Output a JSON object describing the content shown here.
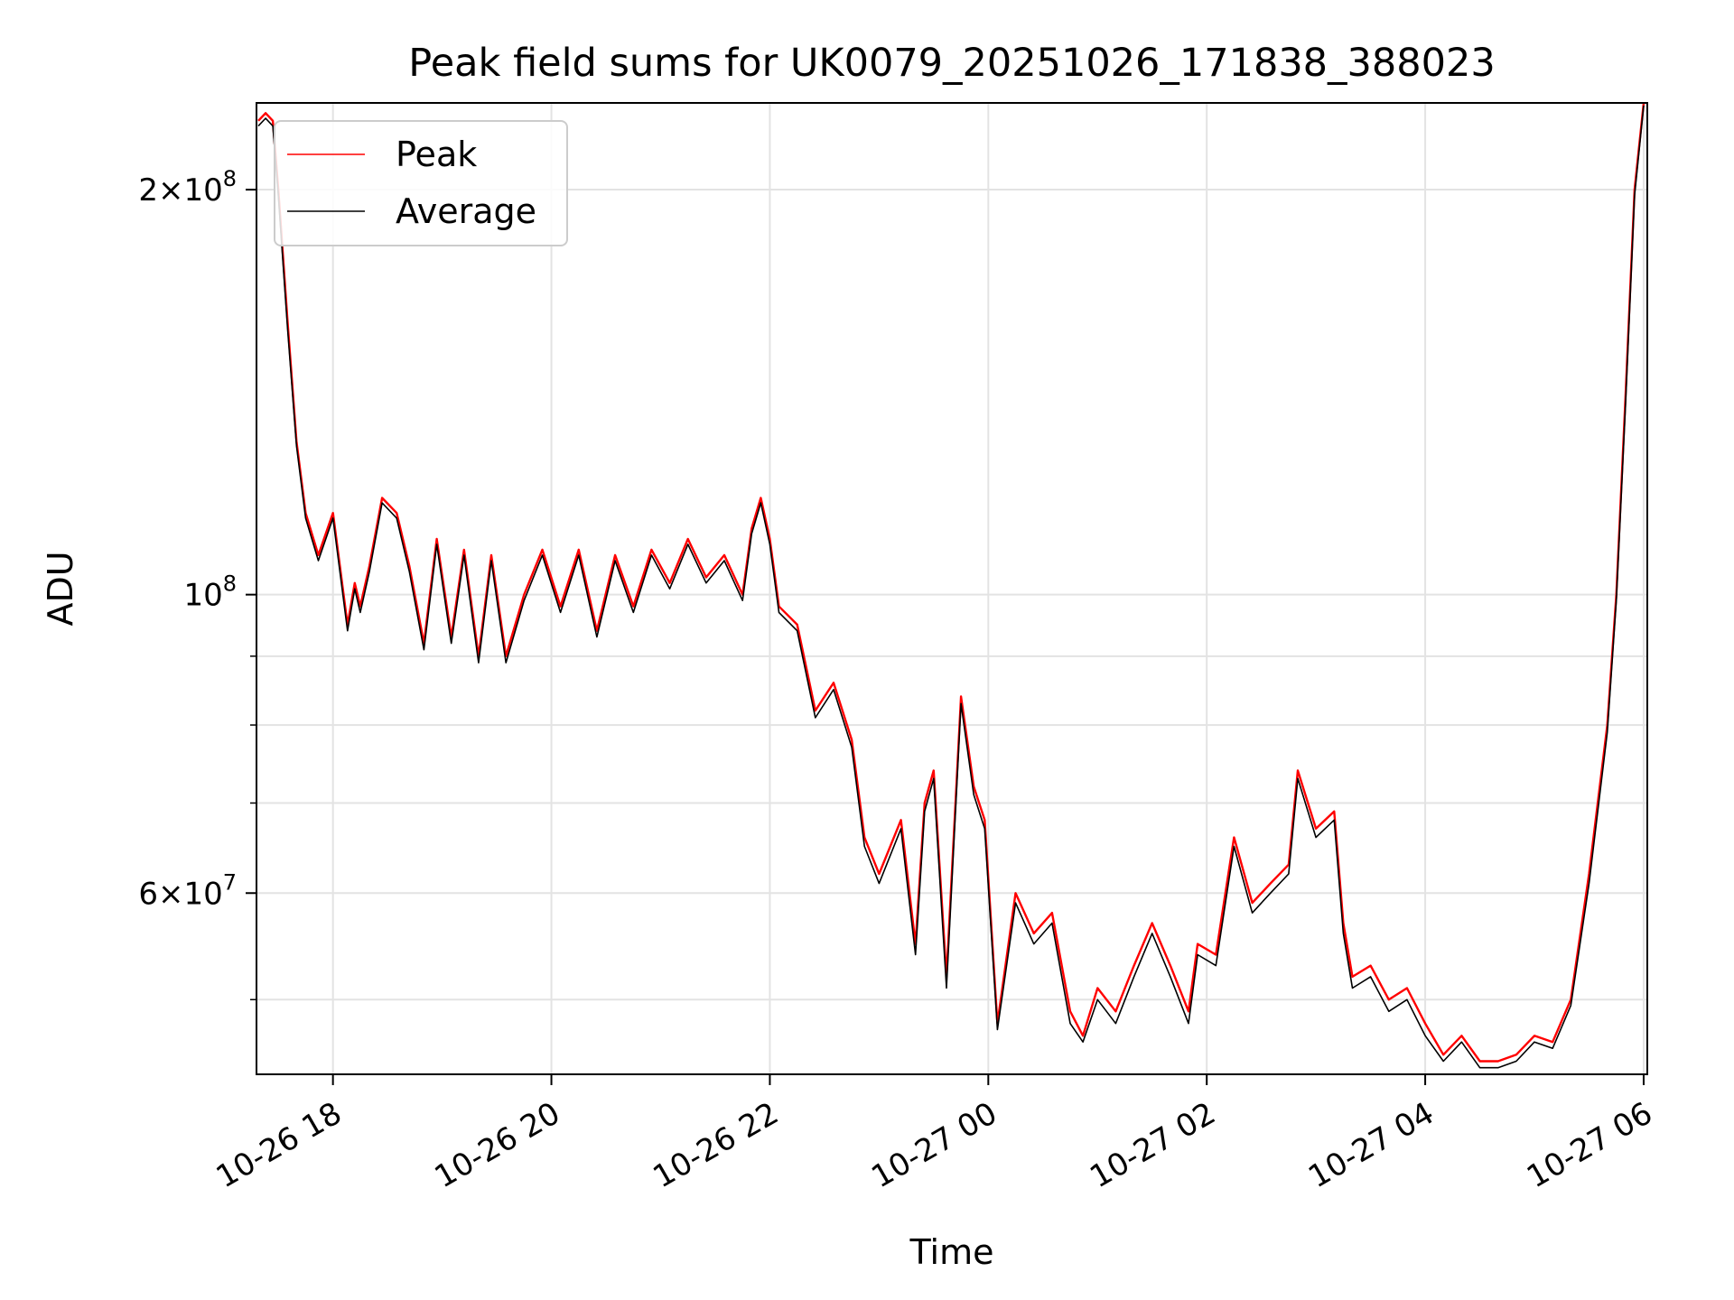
{
  "chart_data": {
    "type": "line",
    "title": "Peak field sums for UK0079_20251026_171838_388023",
    "xlabel": "Time",
    "ylabel": "ADU",
    "y_scale": "log",
    "grid": true,
    "legend_position": "top-left",
    "xlim": [
      "2025-10-26 17:18",
      "2025-10-27 06:02"
    ],
    "ylim": [
      44000000,
      232000000
    ],
    "x_ticks": [
      {
        "t": "2025-10-26 18:00",
        "label": "10-26 18"
      },
      {
        "t": "2025-10-26 20:00",
        "label": "10-26 20"
      },
      {
        "t": "2025-10-26 22:00",
        "label": "10-26 22"
      },
      {
        "t": "2025-10-27 00:00",
        "label": "10-27 00"
      },
      {
        "t": "2025-10-27 02:00",
        "label": "10-27 02"
      },
      {
        "t": "2025-10-27 04:00",
        "label": "10-27 04"
      },
      {
        "t": "2025-10-27 06:00",
        "label": "10-27 06"
      }
    ],
    "y_major_ticks": [
      {
        "value": 60000000,
        "base": "6",
        "exp": "7"
      },
      {
        "value": 100000000,
        "base": "",
        "exp": "8"
      },
      {
        "value": 200000000,
        "base": "2",
        "exp": "8"
      }
    ],
    "y_minor_ticks": [
      50000000,
      70000000,
      80000000,
      90000000
    ],
    "series": [
      {
        "name": "Peak",
        "color": "#ff0000",
        "x": [
          "2025-10-26 17:19",
          "2025-10-26 17:23",
          "2025-10-26 17:27",
          "2025-10-26 17:30",
          "2025-10-26 17:35",
          "2025-10-26 17:40",
          "2025-10-26 17:45",
          "2025-10-26 17:52",
          "2025-10-26 18:00",
          "2025-10-26 18:08",
          "2025-10-26 18:12",
          "2025-10-26 18:15",
          "2025-10-26 18:20",
          "2025-10-26 18:27",
          "2025-10-26 18:35",
          "2025-10-26 18:42",
          "2025-10-26 18:50",
          "2025-10-26 18:57",
          "2025-10-26 19:05",
          "2025-10-26 19:12",
          "2025-10-26 19:20",
          "2025-10-26 19:27",
          "2025-10-26 19:35",
          "2025-10-26 19:45",
          "2025-10-26 19:55",
          "2025-10-26 20:05",
          "2025-10-26 20:15",
          "2025-10-26 20:25",
          "2025-10-26 20:35",
          "2025-10-26 20:45",
          "2025-10-26 20:55",
          "2025-10-26 21:05",
          "2025-10-26 21:15",
          "2025-10-26 21:25",
          "2025-10-26 21:35",
          "2025-10-26 21:45",
          "2025-10-26 21:50",
          "2025-10-26 21:55",
          "2025-10-26 22:00",
          "2025-10-26 22:05",
          "2025-10-26 22:15",
          "2025-10-26 22:25",
          "2025-10-26 22:35",
          "2025-10-26 22:45",
          "2025-10-26 22:52",
          "2025-10-26 23:00",
          "2025-10-26 23:12",
          "2025-10-26 23:20",
          "2025-10-26 23:25",
          "2025-10-26 23:30",
          "2025-10-26 23:37",
          "2025-10-26 23:45",
          "2025-10-26 23:52",
          "2025-10-26 23:58",
          "2025-10-27 00:05",
          "2025-10-27 00:15",
          "2025-10-27 00:25",
          "2025-10-27 00:35",
          "2025-10-27 00:45",
          "2025-10-27 00:52",
          "2025-10-27 01:00",
          "2025-10-27 01:10",
          "2025-10-27 01:20",
          "2025-10-27 01:30",
          "2025-10-27 01:40",
          "2025-10-27 01:50",
          "2025-10-27 01:55",
          "2025-10-27 02:05",
          "2025-10-27 02:15",
          "2025-10-27 02:25",
          "2025-10-27 02:35",
          "2025-10-27 02:45",
          "2025-10-27 02:50",
          "2025-10-27 03:00",
          "2025-10-27 03:10",
          "2025-10-27 03:15",
          "2025-10-27 03:20",
          "2025-10-27 03:30",
          "2025-10-27 03:40",
          "2025-10-27 03:50",
          "2025-10-27 04:00",
          "2025-10-27 04:10",
          "2025-10-27 04:20",
          "2025-10-27 04:30",
          "2025-10-27 04:40",
          "2025-10-27 04:50",
          "2025-10-27 05:00",
          "2025-10-27 05:10",
          "2025-10-27 05:20",
          "2025-10-27 05:30",
          "2025-10-27 05:40",
          "2025-10-27 05:45",
          "2025-10-27 05:50",
          "2025-10-27 05:55",
          "2025-10-27 06:00"
        ],
        "values": [
          225000000,
          228000000,
          225000000,
          200000000,
          160000000,
          130000000,
          115000000,
          107000000,
          115000000,
          95000000,
          102000000,
          98000000,
          105000000,
          118000000,
          115000000,
          105000000,
          92000000,
          110000000,
          93000000,
          108000000,
          90000000,
          107000000,
          90000000,
          100000000,
          108000000,
          98000000,
          108000000,
          94000000,
          107000000,
          98000000,
          108000000,
          102000000,
          110000000,
          103000000,
          107000000,
          100000000,
          112000000,
          118000000,
          110000000,
          98000000,
          95000000,
          82000000,
          86000000,
          78000000,
          66000000,
          62000000,
          68000000,
          55000000,
          70000000,
          74000000,
          52000000,
          84000000,
          72000000,
          68000000,
          48000000,
          60000000,
          56000000,
          58000000,
          49000000,
          47000000,
          51000000,
          49000000,
          53000000,
          57000000,
          53000000,
          49000000,
          55000000,
          54000000,
          66000000,
          59000000,
          61000000,
          63000000,
          74000000,
          67000000,
          69000000,
          57000000,
          52000000,
          53000000,
          50000000,
          51000000,
          48000000,
          45500000,
          47000000,
          45000000,
          45000000,
          45500000,
          47000000,
          46500000,
          50000000,
          62000000,
          80000000,
          100000000,
          140000000,
          200000000,
          232000000
        ]
      },
      {
        "name": "Average",
        "color": "#000000",
        "x": [
          "2025-10-26 17:19",
          "2025-10-26 17:23",
          "2025-10-26 17:27",
          "2025-10-26 17:30",
          "2025-10-26 17:35",
          "2025-10-26 17:40",
          "2025-10-26 17:45",
          "2025-10-26 17:52",
          "2025-10-26 18:00",
          "2025-10-26 18:08",
          "2025-10-26 18:12",
          "2025-10-26 18:15",
          "2025-10-26 18:20",
          "2025-10-26 18:27",
          "2025-10-26 18:35",
          "2025-10-26 18:42",
          "2025-10-26 18:50",
          "2025-10-26 18:57",
          "2025-10-26 19:05",
          "2025-10-26 19:12",
          "2025-10-26 19:20",
          "2025-10-26 19:27",
          "2025-10-26 19:35",
          "2025-10-26 19:45",
          "2025-10-26 19:55",
          "2025-10-26 20:05",
          "2025-10-26 20:15",
          "2025-10-26 20:25",
          "2025-10-26 20:35",
          "2025-10-26 20:45",
          "2025-10-26 20:55",
          "2025-10-26 21:05",
          "2025-10-26 21:15",
          "2025-10-26 21:25",
          "2025-10-26 21:35",
          "2025-10-26 21:45",
          "2025-10-26 21:50",
          "2025-10-26 21:55",
          "2025-10-26 22:00",
          "2025-10-26 22:05",
          "2025-10-26 22:15",
          "2025-10-26 22:25",
          "2025-10-26 22:35",
          "2025-10-26 22:45",
          "2025-10-26 22:52",
          "2025-10-26 23:00",
          "2025-10-26 23:12",
          "2025-10-26 23:20",
          "2025-10-26 23:25",
          "2025-10-26 23:30",
          "2025-10-26 23:37",
          "2025-10-26 23:45",
          "2025-10-26 23:52",
          "2025-10-26 23:58",
          "2025-10-27 00:05",
          "2025-10-27 00:15",
          "2025-10-27 00:25",
          "2025-10-27 00:35",
          "2025-10-27 00:45",
          "2025-10-27 00:52",
          "2025-10-27 01:00",
          "2025-10-27 01:10",
          "2025-10-27 01:20",
          "2025-10-27 01:30",
          "2025-10-27 01:40",
          "2025-10-27 01:50",
          "2025-10-27 01:55",
          "2025-10-27 02:05",
          "2025-10-27 02:15",
          "2025-10-27 02:25",
          "2025-10-27 02:35",
          "2025-10-27 02:45",
          "2025-10-27 02:50",
          "2025-10-27 03:00",
          "2025-10-27 03:10",
          "2025-10-27 03:15",
          "2025-10-27 03:20",
          "2025-10-27 03:30",
          "2025-10-27 03:40",
          "2025-10-27 03:50",
          "2025-10-27 04:00",
          "2025-10-27 04:10",
          "2025-10-27 04:20",
          "2025-10-27 04:30",
          "2025-10-27 04:40",
          "2025-10-27 04:50",
          "2025-10-27 05:00",
          "2025-10-27 05:10",
          "2025-10-27 05:20",
          "2025-10-27 05:30",
          "2025-10-27 05:40",
          "2025-10-27 05:45",
          "2025-10-27 05:50",
          "2025-10-27 05:55",
          "2025-10-27 06:00"
        ],
        "values": [
          223000000,
          226000000,
          223000000,
          198000000,
          158000000,
          129000000,
          114000000,
          106000000,
          114000000,
          94000000,
          101000000,
          97000000,
          104000000,
          117000000,
          114000000,
          104000000,
          91000000,
          109000000,
          92000000,
          107000000,
          89000000,
          106000000,
          89000000,
          99000000,
          107000000,
          97000000,
          107000000,
          93000000,
          106000000,
          97000000,
          107000000,
          101000000,
          109000000,
          102000000,
          106000000,
          99000000,
          111000000,
          117000000,
          109000000,
          97000000,
          94000000,
          81000000,
          85000000,
          77000000,
          65000000,
          61000000,
          67000000,
          54000000,
          69000000,
          73000000,
          51000000,
          83000000,
          71000000,
          67000000,
          47500000,
          59000000,
          55000000,
          57000000,
          48000000,
          46500000,
          50000000,
          48000000,
          52000000,
          56000000,
          52000000,
          48000000,
          54000000,
          53000000,
          65000000,
          58000000,
          60000000,
          62000000,
          73000000,
          66000000,
          68000000,
          56000000,
          51000000,
          52000000,
          49000000,
          50000000,
          47000000,
          45000000,
          46500000,
          44500000,
          44500000,
          45000000,
          46500000,
          46000000,
          49500000,
          61000000,
          79000000,
          99000000,
          138000000,
          198000000,
          231000000
        ]
      }
    ]
  }
}
